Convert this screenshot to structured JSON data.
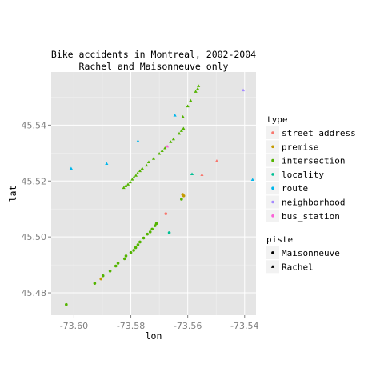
{
  "chart_data": {
    "type": "scatter",
    "title": "Bike accidents in Montreal, 2002-2004",
    "subtitle": "Rachel and Maisonneuve only",
    "xlabel": "lon",
    "ylabel": "lat",
    "xlim": [
      -73.608,
      -73.536
    ],
    "ylim": [
      45.472,
      45.559
    ],
    "xticks": [
      -73.6,
      -73.58,
      -73.56,
      -73.54
    ],
    "xtick_labels": [
      "-73.60",
      "-73.58",
      "-73.56",
      "-73.54"
    ],
    "yticks": [
      45.48,
      45.5,
      45.52,
      45.54
    ],
    "ytick_labels": [
      "45.48",
      "45.50",
      "45.52",
      "45.54"
    ],
    "grid": true,
    "legend_position": "right",
    "color_legend": {
      "title": "type",
      "entries": [
        {
          "name": "street_address",
          "color": "#F8766D"
        },
        {
          "name": "premise",
          "color": "#C49A00"
        },
        {
          "name": "intersection",
          "color": "#53B400"
        },
        {
          "name": "locality",
          "color": "#00C094"
        },
        {
          "name": "route",
          "color": "#00B6EB"
        },
        {
          "name": "neighborhood",
          "color": "#A58AFF"
        },
        {
          "name": "bus_station",
          "color": "#FB61D7"
        }
      ]
    },
    "shape_legend": {
      "title": "piste",
      "entries": [
        {
          "name": "Maisonneuve",
          "shape": "circle"
        },
        {
          "name": "Rachel",
          "shape": "triangle"
        }
      ]
    },
    "points": [
      {
        "x": -73.6027,
        "y": 45.4758,
        "type": "intersection",
        "piste": "Maisonneuve"
      },
      {
        "x": -73.5927,
        "y": 45.4834,
        "type": "intersection",
        "piste": "Maisonneuve"
      },
      {
        "x": -73.5905,
        "y": 45.485,
        "type": "premise",
        "piste": "Maisonneuve"
      },
      {
        "x": -73.5898,
        "y": 45.4861,
        "type": "intersection",
        "piste": "Maisonneuve"
      },
      {
        "x": -73.5873,
        "y": 45.4878,
        "type": "intersection",
        "piste": "Maisonneuve"
      },
      {
        "x": -73.5853,
        "y": 45.4896,
        "type": "intersection",
        "piste": "Maisonneuve"
      },
      {
        "x": -73.5845,
        "y": 45.4906,
        "type": "intersection",
        "piste": "Maisonneuve"
      },
      {
        "x": -73.5822,
        "y": 45.4922,
        "type": "intersection",
        "piste": "Maisonneuve"
      },
      {
        "x": -73.5817,
        "y": 45.4932,
        "type": "intersection",
        "piste": "Maisonneuve"
      },
      {
        "x": -73.58,
        "y": 45.4944,
        "type": "intersection",
        "piste": "Maisonneuve"
      },
      {
        "x": -73.579,
        "y": 45.4952,
        "type": "intersection",
        "piste": "Maisonneuve"
      },
      {
        "x": -73.5783,
        "y": 45.4962,
        "type": "intersection",
        "piste": "Maisonneuve"
      },
      {
        "x": -73.5775,
        "y": 45.4972,
        "type": "intersection",
        "piste": "Maisonneuve"
      },
      {
        "x": -73.5768,
        "y": 45.4982,
        "type": "intersection",
        "piste": "Maisonneuve"
      },
      {
        "x": -73.5755,
        "y": 45.4996,
        "type": "intersection",
        "piste": "Maisonneuve"
      },
      {
        "x": -73.5742,
        "y": 45.501,
        "type": "intersection",
        "piste": "Maisonneuve"
      },
      {
        "x": -73.5732,
        "y": 45.5018,
        "type": "intersection",
        "piste": "Maisonneuve"
      },
      {
        "x": -73.5725,
        "y": 45.5028,
        "type": "intersection",
        "piste": "Maisonneuve"
      },
      {
        "x": -73.5715,
        "y": 45.504,
        "type": "intersection",
        "piste": "Maisonneuve"
      },
      {
        "x": -73.571,
        "y": 45.5048,
        "type": "intersection",
        "piste": "Maisonneuve"
      },
      {
        "x": -73.5677,
        "y": 45.5083,
        "type": "street_address",
        "piste": "Maisonneuve"
      },
      {
        "x": -73.5665,
        "y": 45.5015,
        "type": "locality",
        "piste": "Maisonneuve"
      },
      {
        "x": -73.5622,
        "y": 45.5135,
        "type": "intersection",
        "piste": "Maisonneuve"
      },
      {
        "x": -73.5618,
        "y": 45.5152,
        "type": "premise",
        "piste": "Maisonneuve"
      },
      {
        "x": -73.5614,
        "y": 45.5147,
        "type": "premise",
        "piste": "Maisonneuve"
      },
      {
        "x": -73.5825,
        "y": 45.5176,
        "type": "intersection",
        "piste": "Rachel"
      },
      {
        "x": -73.5818,
        "y": 45.5182,
        "type": "intersection",
        "piste": "Rachel"
      },
      {
        "x": -73.581,
        "y": 45.5188,
        "type": "intersection",
        "piste": "Rachel"
      },
      {
        "x": -73.5802,
        "y": 45.5196,
        "type": "intersection",
        "piste": "Rachel"
      },
      {
        "x": -73.5795,
        "y": 45.5206,
        "type": "intersection",
        "piste": "Rachel"
      },
      {
        "x": -73.5789,
        "y": 45.5214,
        "type": "intersection",
        "piste": "Rachel"
      },
      {
        "x": -73.5782,
        "y": 45.522,
        "type": "intersection",
        "piste": "Rachel"
      },
      {
        "x": -73.5776,
        "y": 45.5228,
        "type": "intersection",
        "piste": "Rachel"
      },
      {
        "x": -73.5768,
        "y": 45.5236,
        "type": "intersection",
        "piste": "Rachel"
      },
      {
        "x": -73.576,
        "y": 45.5245,
        "type": "intersection",
        "piste": "Rachel"
      },
      {
        "x": -73.5745,
        "y": 45.5256,
        "type": "intersection",
        "piste": "Rachel"
      },
      {
        "x": -73.5737,
        "y": 45.5268,
        "type": "intersection",
        "piste": "Rachel"
      },
      {
        "x": -73.572,
        "y": 45.528,
        "type": "intersection",
        "piste": "Rachel"
      },
      {
        "x": -73.57,
        "y": 45.5298,
        "type": "intersection",
        "piste": "Rachel"
      },
      {
        "x": -73.569,
        "y": 45.5308,
        "type": "intersection",
        "piste": "Rachel"
      },
      {
        "x": -73.568,
        "y": 45.5318,
        "type": "intersection",
        "piste": "Rachel"
      },
      {
        "x": -73.5672,
        "y": 45.5324,
        "type": "bus_station",
        "piste": "Rachel"
      },
      {
        "x": -73.566,
        "y": 45.534,
        "type": "intersection",
        "piste": "Rachel"
      },
      {
        "x": -73.565,
        "y": 45.535,
        "type": "intersection",
        "piste": "Rachel"
      },
      {
        "x": -73.563,
        "y": 45.537,
        "type": "intersection",
        "piste": "Rachel"
      },
      {
        "x": -73.5622,
        "y": 45.538,
        "type": "intersection",
        "piste": "Rachel"
      },
      {
        "x": -73.5615,
        "y": 45.5388,
        "type": "intersection",
        "piste": "Rachel"
      },
      {
        "x": -73.5617,
        "y": 45.543,
        "type": "intersection",
        "piste": "Rachel"
      },
      {
        "x": -73.56,
        "y": 45.5468,
        "type": "intersection",
        "piste": "Rachel"
      },
      {
        "x": -73.559,
        "y": 45.5488,
        "type": "intersection",
        "piste": "Rachel"
      },
      {
        "x": -73.5572,
        "y": 45.552,
        "type": "intersection",
        "piste": "Rachel"
      },
      {
        "x": -73.5565,
        "y": 45.553,
        "type": "intersection",
        "piste": "Rachel"
      },
      {
        "x": -73.5562,
        "y": 45.554,
        "type": "intersection",
        "piste": "Rachel"
      },
      {
        "x": -73.5645,
        "y": 45.5435,
        "type": "route",
        "piste": "Rachel"
      },
      {
        "x": -73.5775,
        "y": 45.5343,
        "type": "route",
        "piste": "Rachel"
      },
      {
        "x": -73.5885,
        "y": 45.5262,
        "type": "route",
        "piste": "Rachel"
      },
      {
        "x": -73.601,
        "y": 45.5245,
        "type": "route",
        "piste": "Rachel"
      },
      {
        "x": -73.5585,
        "y": 45.5225,
        "type": "locality",
        "piste": "Rachel"
      },
      {
        "x": -73.5372,
        "y": 45.5205,
        "type": "route",
        "piste": "Rachel"
      },
      {
        "x": -73.555,
        "y": 45.5222,
        "type": "street_address",
        "piste": "Rachel"
      },
      {
        "x": -73.5498,
        "y": 45.5272,
        "type": "street_address",
        "piste": "Rachel"
      },
      {
        "x": -73.5405,
        "y": 45.5525,
        "type": "neighborhood",
        "piste": "Rachel"
      }
    ]
  }
}
